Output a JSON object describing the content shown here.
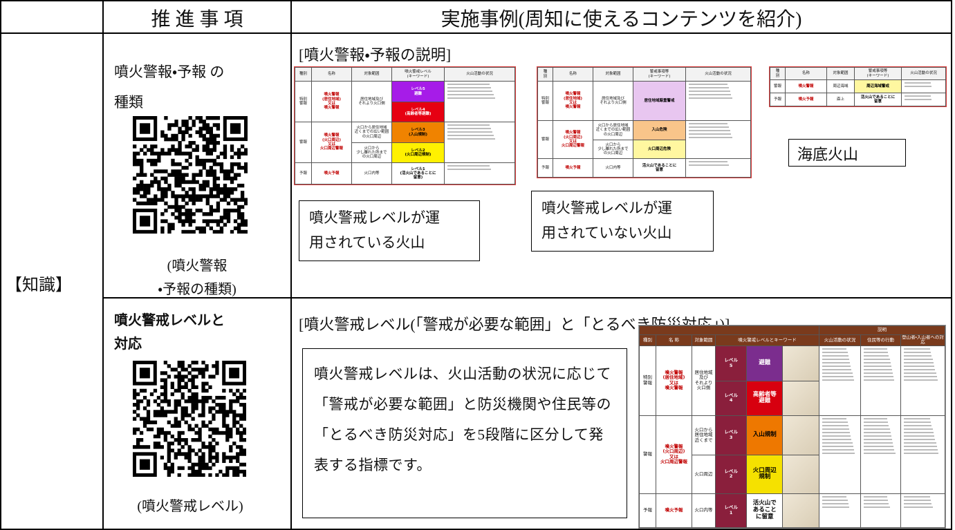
{
  "header": {
    "item": "推 進 事 項",
    "example": "実施事例(周知に使えるコンテンツを紹介)"
  },
  "category": "【知識】",
  "rows": [
    {
      "item": "噴火警報・予報 の\n種類",
      "qr_caption": "(噴火警報\n・予報の種類)",
      "heading": "[噴火警報・予報の説明]",
      "thumbnails": [
        {
          "header": [
            "種別",
            "名称",
            "対象範囲",
            "噴火警戒レベル\n(キーワード)",
            "火山活動の状況"
          ],
          "rows": [
            [
              "特別\n警報",
              "噴火警報\n(居住地域)\n又は\n噴火警報",
              "居住地域及び\nそれより火口側",
              [
                {
                  "text": "レベル5\n避難",
                  "color": "#a61ce8"
                },
                {
                  "text": "レベル4\n(高齢者等避難)",
                  "color": "#e60012"
                }
              ]
            ],
            [
              "警報",
              "噴火警報\n(火口周辺)\n又は\n火口周辺警報",
              [
                "火口から居住地域\n近くまでの広い範囲\nの火口周辺",
                "火口から\n少し離れた所まで\nの火口周辺"
              ],
              [
                {
                  "text": "レベル3\n(入山規制)",
                  "color": "#f08300"
                },
                {
                  "text": "レベル2\n(火口周辺規制)",
                  "color": "#fff100"
                }
              ]
            ],
            [
              "予報",
              "噴火予報",
              "火口内等",
              [
                {
                  "text": "レベル1\n(活火山であることに\n留意)",
                  "color": "#ffffff"
                }
              ]
            ]
          ]
        },
        {
          "header": [
            "種\n別",
            "名称",
            "対象範囲",
            "警戒事項等\n(キーワード)",
            "火山活動の状況"
          ],
          "rows": [
            [
              "特別\n警報",
              "噴火警報\n(居住地域)\n又は\n噴火警報",
              "居住地域及び\nそれより火口側",
              [
                {
                  "text": "居住地域厳重警戒",
                  "color": "#e8c6f0"
                }
              ]
            ],
            [
              "警報",
              "噴火警報\n(火口周辺)\n又は\n火口周辺警報",
              [
                "火口から居住地域\n近くまでの広い範囲\nの火口周辺",
                "火口から\n少し離れた所まで\nの火口周辺"
              ],
              [
                {
                  "text": "入山危険",
                  "color": "#f9c58a"
                },
                {
                  "text": "火口周辺危険",
                  "color": "#fff7a0"
                }
              ]
            ],
            [
              "予報",
              "噴火予報",
              "火口内等",
              [
                {
                  "text": "活火山であることに\n留意",
                  "color": "#ffffff"
                }
              ]
            ]
          ]
        },
        {
          "header": [
            "種\n別",
            "名称",
            "対象範囲",
            "警戒事項等\n(キーワード)",
            "火山活動の状況"
          ],
          "rows": [
            [
              "警報",
              "噴火警報",
              "周辺海域",
              [
                {
                  "text": "周辺海域警戒",
                  "color": "#fff7a0"
                }
              ]
            ],
            [
              "予報",
              "噴火予報",
              "直上",
              [
                {
                  "text": "活火山であることに\n留意",
                  "color": "#ffffff"
                }
              ]
            ]
          ]
        }
      ],
      "callouts": [
        "噴火警戒レベルが運\n用されている火山",
        "噴火警戒レベルが運\n用されていない火山",
        "海底火山"
      ]
    },
    {
      "item": "噴火警戒レベルと\n対応",
      "qr_caption": "(噴火警戒レベル)",
      "heading": "[噴火警戒レベル(「警戒が必要な範囲」と「とるべき防災対応」)]",
      "description": "噴火警戒レベルは、火山活動の状況に応じて「警戒が必要な範囲」と防災機関や住民等の「とるべき防災対応」を5段階に区分して発表する指標です。",
      "chart": {
        "super_header": "説明",
        "header": [
          "種別",
          "名 称",
          "対象範囲",
          "噴火警戒レベルとキーワード",
          "火山活動の状況",
          "住民等の行動",
          "登山者・入山者への対応"
        ],
        "rows": [
          [
            "特別\n警報",
            "噴火警報\n(居住地域)\n又は\n噴火警報",
            "居住地域\n及び\nそれより\n火口側",
            [
              {
                "text": "レベル\n5",
                "color": "#8a1f3c",
                "keyword": "避難",
                "keyword_color": "#7b2d8e"
              },
              {
                "text": "レベル\n4",
                "color": "#8a1f3c",
                "keyword": "高齢者等\n避難",
                "keyword_color": "#d7000f"
              }
            ]
          ],
          [
            "警報",
            "噴火警報\n(火口周辺)\n又は\n火口周辺警報",
            [
              "火口から\n居住地域\n近くまで",
              "火口周辺"
            ],
            [
              {
                "text": "レベル\n3",
                "color": "#8a1f3c",
                "keyword": "入山規制",
                "keyword_color": "#ee7800"
              },
              {
                "text": "レベル\n2",
                "color": "#8a1f3c",
                "keyword": "火口周辺\n規制",
                "keyword_color": "#f5e100"
              }
            ]
          ],
          [
            "予報",
            "噴火予報",
            "火口内等",
            [
              {
                "text": "レベル\n1",
                "color": "#8a1f3c",
                "keyword": "活火山で\nあること\nに留意",
                "keyword_color": "#ffffff"
              }
            ]
          ]
        ]
      }
    }
  ]
}
